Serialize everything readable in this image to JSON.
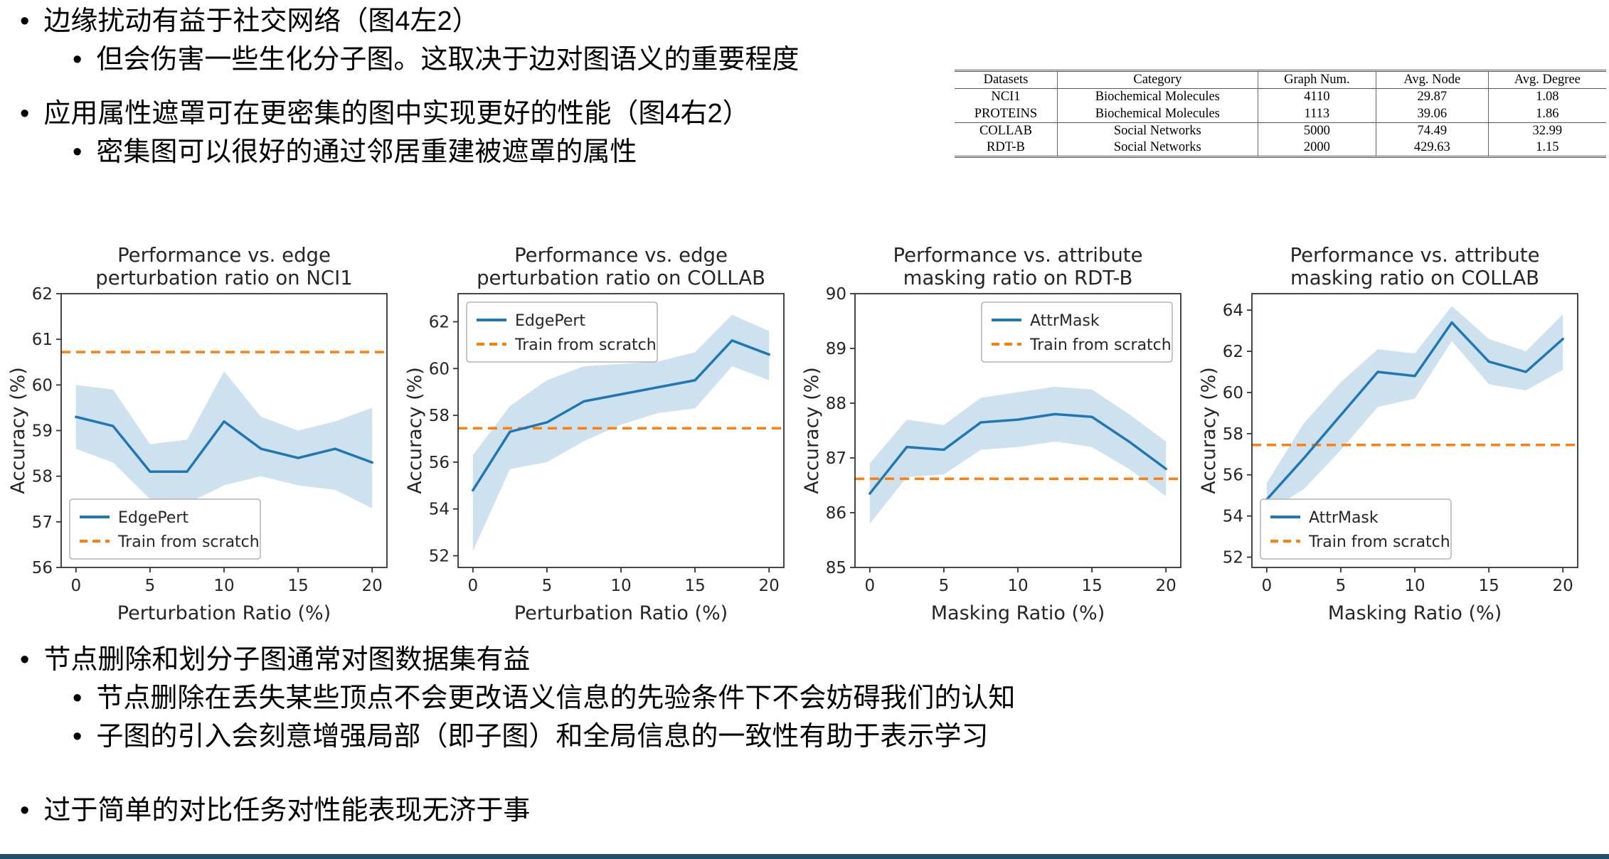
{
  "slide": {
    "bullet_marker": "•",
    "top_bullets": [
      {
        "level": 1,
        "text": "边缘扰动有益于社交网络（图4左2）"
      },
      {
        "level": 2,
        "text": "但会伤害一些生化分子图。这取决于边对图语义的重要程度"
      },
      {
        "level": 1,
        "text": "应用属性遮罩可在更密集的图中实现更好的性能（图4右2）"
      },
      {
        "level": 2,
        "text": "密集图可以很好的通过邻居重建被遮罩的属性"
      }
    ],
    "bottom_bullets": [
      {
        "level": 1,
        "text": "节点删除和划分子图通常对图数据集有益"
      },
      {
        "level": 2,
        "text": "节点删除在丢失某些顶点不会更改语义信息的先验条件下不会妨碍我们的认知"
      },
      {
        "level": 2,
        "text": "子图的引入会刻意增强局部（即子图）和全局信息的一致性有助于表示学习"
      },
      {
        "level": 1,
        "text": "过于简单的对比任务对性能表现无济于事"
      }
    ],
    "footer_bar_color": "#1f4f6b"
  },
  "table": {
    "headers": [
      "Datasets",
      "Category",
      "Graph Num.",
      "Avg. Node",
      "Avg. Degree"
    ],
    "rows": [
      [
        "NCI1",
        "Biochemical Molecules",
        "4110",
        "29.87",
        "1.08"
      ],
      [
        "PROTEINS",
        "Biochemical Molecules",
        "1113",
        "39.06",
        "1.86"
      ],
      [
        "COLLAB",
        "Social Networks",
        "5000",
        "74.49",
        "32.99"
      ],
      [
        "RDT-B",
        "Social Networks",
        "2000",
        "429.63",
        "1.15"
      ]
    ],
    "group_separator_after_row": 1
  },
  "chart_colors": {
    "line": "#1f77b4",
    "baseline": "#ff7f0e",
    "band": "rgba(31,119,180,0.22)",
    "text": "#262626",
    "spine": "#333333",
    "legend_border": "#b3b3b3"
  },
  "chart_data": [
    {
      "type": "line",
      "title_lines": [
        "Performance vs. edge",
        "perturbation ratio on NCI1"
      ],
      "xlabel": "Perturbation Ratio (%)",
      "ylabel": "Accuracy (%)",
      "xlim": [
        -1,
        21
      ],
      "ylim": [
        56,
        62
      ],
      "xticks": [
        0,
        5,
        10,
        15,
        20
      ],
      "yticks": [
        56,
        57,
        58,
        59,
        60,
        61,
        62
      ],
      "x": [
        0,
        2.5,
        5,
        7.5,
        10,
        12.5,
        15,
        17.5,
        20
      ],
      "line": {
        "name": "EdgePert",
        "values": [
          59.3,
          59.1,
          58.1,
          58.1,
          59.2,
          58.6,
          58.4,
          58.6,
          58.3
        ]
      },
      "band_low": [
        58.6,
        58.3,
        57.5,
        57.4,
        57.8,
        58.0,
        57.8,
        57.7,
        57.3
      ],
      "band_high": [
        60.0,
        59.9,
        58.7,
        58.8,
        60.3,
        59.3,
        59.0,
        59.2,
        59.5
      ],
      "baseline": {
        "name": "Train from scratch",
        "value": 60.72
      },
      "legend_pos": "bl",
      "grid": false
    },
    {
      "type": "line",
      "title_lines": [
        "Performance vs. edge",
        "perturbation ratio on COLLAB"
      ],
      "xlabel": "Perturbation Ratio (%)",
      "ylabel": "Accuracy (%)",
      "xlim": [
        -1,
        21
      ],
      "ylim": [
        51.5,
        63.2
      ],
      "xticks": [
        0,
        5,
        10,
        15,
        20
      ],
      "yticks": [
        52,
        54,
        56,
        58,
        60,
        62
      ],
      "x": [
        0,
        2.5,
        5,
        7.5,
        10,
        12.5,
        15,
        17.5,
        20
      ],
      "line": {
        "name": "EdgePert",
        "values": [
          54.8,
          57.3,
          57.7,
          58.6,
          58.9,
          59.2,
          59.5,
          61.2,
          60.6
        ]
      },
      "band_low": [
        52.2,
        55.7,
        56.0,
        56.9,
        57.6,
        58.1,
        58.3,
        60.1,
        59.5
      ],
      "band_high": [
        56.3,
        58.4,
        59.5,
        60.1,
        60.2,
        60.3,
        60.7,
        62.3,
        61.6
      ],
      "baseline": {
        "name": "Train from scratch",
        "value": 57.45
      },
      "legend_pos": "tl",
      "grid": false
    },
    {
      "type": "line",
      "title_lines": [
        "Performance vs. attribute",
        "masking ratio on RDT-B"
      ],
      "xlabel": "Masking Ratio (%)",
      "ylabel": "Accuracy (%)",
      "xlim": [
        -1,
        21
      ],
      "ylim": [
        85,
        90
      ],
      "xticks": [
        0,
        5,
        10,
        15,
        20
      ],
      "yticks": [
        85,
        86,
        87,
        88,
        89,
        90
      ],
      "x": [
        0,
        2.5,
        5,
        7.5,
        10,
        12.5,
        15,
        17.5,
        20
      ],
      "line": {
        "name": "AttrMask",
        "values": [
          86.35,
          87.2,
          87.15,
          87.65,
          87.7,
          87.8,
          87.75,
          87.3,
          86.8
        ]
      },
      "band_low": [
        85.8,
        86.65,
        86.7,
        87.15,
        87.2,
        87.3,
        87.2,
        86.8,
        86.3
      ],
      "band_high": [
        86.9,
        87.7,
        87.6,
        88.1,
        88.2,
        88.3,
        88.25,
        87.8,
        87.3
      ],
      "baseline": {
        "name": "Train from scratch",
        "value": 86.62
      },
      "legend_pos": "tr",
      "grid": false
    },
    {
      "type": "line",
      "title_lines": [
        "Performance vs. attribute",
        "masking ratio on COLLAB"
      ],
      "xlabel": "Masking Ratio (%)",
      "ylabel": "Accuracy (%)",
      "xlim": [
        -1,
        21
      ],
      "ylim": [
        51.5,
        64.8
      ],
      "xticks": [
        0,
        5,
        10,
        15,
        20
      ],
      "yticks": [
        52,
        54,
        56,
        58,
        60,
        62,
        64
      ],
      "x": [
        0,
        2.5,
        5,
        7.5,
        10,
        12.5,
        15,
        17.5,
        20
      ],
      "line": {
        "name": "AttrMask",
        "values": [
          54.8,
          56.8,
          58.9,
          61.0,
          60.8,
          63.4,
          61.5,
          61.0,
          62.6
        ]
      },
      "band_low": [
        54.2,
        55.3,
        57.2,
        59.3,
        59.7,
        62.5,
        60.4,
        60.1,
        61.1
      ],
      "band_high": [
        55.6,
        58.5,
        60.5,
        62.1,
        61.9,
        64.2,
        62.6,
        62.0,
        63.8
      ],
      "baseline": {
        "name": "Train from scratch",
        "value": 57.45
      },
      "legend_pos": "bl",
      "grid": false
    }
  ]
}
